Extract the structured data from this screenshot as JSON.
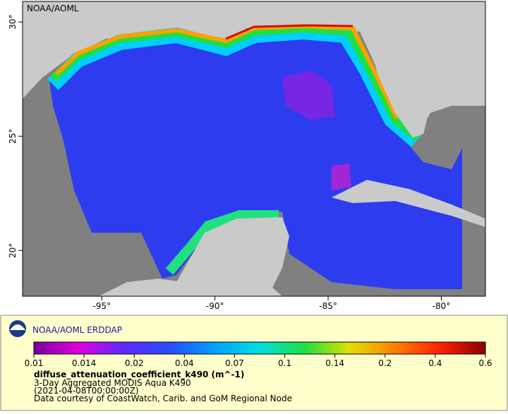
{
  "watermark": "NOAA/AOML",
  "map": {
    "xlim": [
      -98.5,
      -78.05
    ],
    "ylim": [
      18,
      30.9
    ],
    "xticks": [
      {
        "value": -95,
        "label": "-95°"
      },
      {
        "value": -90,
        "label": "-90°"
      },
      {
        "value": -85,
        "label": "-85°"
      },
      {
        "value": -80,
        "label": "-80°"
      }
    ],
    "yticks": [
      {
        "value": 20,
        "label": "20°"
      },
      {
        "value": 25,
        "label": "25°"
      },
      {
        "value": 30,
        "label": "30°"
      }
    ]
  },
  "legend": {
    "title": "NOAA/AOML ERDDAP",
    "colorbar": {
      "ticks": [
        0.01,
        0.014,
        0.02,
        0.04,
        0.07,
        0.1,
        0.14,
        0.2,
        0.4,
        0.6
      ],
      "colors": [
        "#7a00a0",
        "#e000e0",
        "#5a2cff",
        "#2a4cff",
        "#00a0ff",
        "#00e0e0",
        "#20e040",
        "#e0e000",
        "#ff8000",
        "#ff2000",
        "#8a0000"
      ]
    },
    "variable": "diffuse_attenuation_coefficient_k490 (m^-1)",
    "lines": [
      "3-Day Aggregated MODIS Aqua K490",
      "(2021-04-08T00:00:00Z)",
      "Data courtesy of CoastWatch, Carib. and GoM Regional Node"
    ]
  }
}
